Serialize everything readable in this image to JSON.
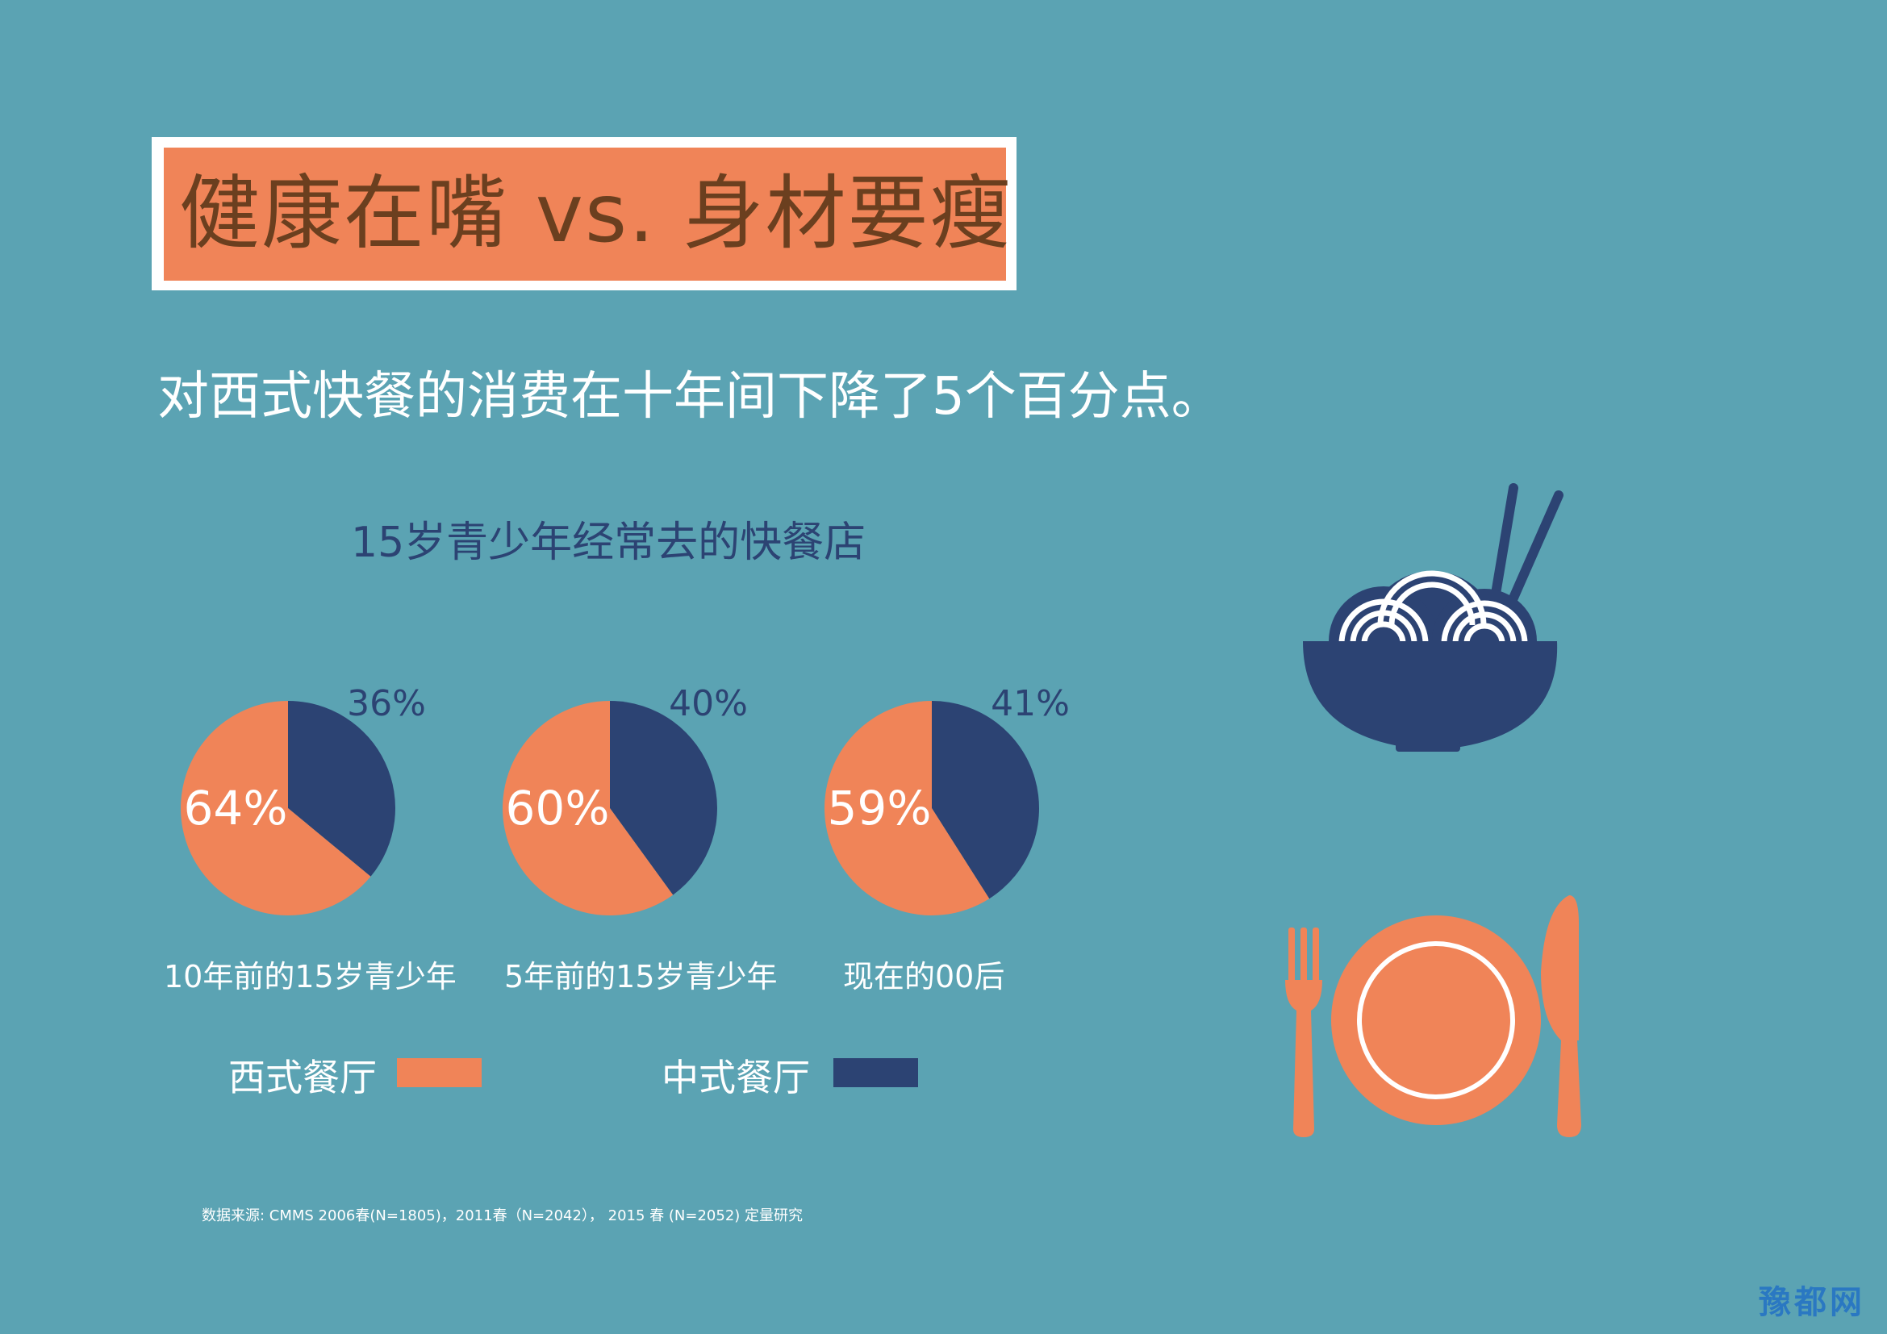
{
  "title": "健康在嘴  vs. 身材要瘦",
  "subtitle": "对西式快餐的消费在十年间下降了5个百分点。",
  "chart_data": {
    "type": "pie",
    "title": "15岁青少年经常去的快餐店",
    "series_names": [
      "西式餐厅",
      "中式餐厅"
    ],
    "pies": [
      {
        "label": "10年前的15岁青少年",
        "western": 64,
        "chinese": 36,
        "western_label": "64%",
        "chinese_label": "36%"
      },
      {
        "label": "5年前的15岁青少年",
        "western": 60,
        "chinese": 40,
        "western_label": "60%",
        "chinese_label": "40%"
      },
      {
        "label": "现在的00后",
        "western": 59,
        "chinese": 41,
        "western_label": "59%",
        "chinese_label": "41%"
      }
    ],
    "legend": [
      {
        "name": "西式餐厅",
        "color": "#f08458"
      },
      {
        "name": "中式餐厅",
        "color": "#2c4373"
      }
    ]
  },
  "colors": {
    "background": "#5ba3b3",
    "orange": "#f08458",
    "navy": "#2c4373",
    "title_text": "#6b3f1f"
  },
  "icons": [
    "noodle-bowl-icon",
    "plate-fork-knife-icon"
  ],
  "source": "数据来源:   CMMS 2006春(N=1805)，2011春（N=2042），  2015 春 (N=2052)  定量研究",
  "watermark": "豫都网"
}
